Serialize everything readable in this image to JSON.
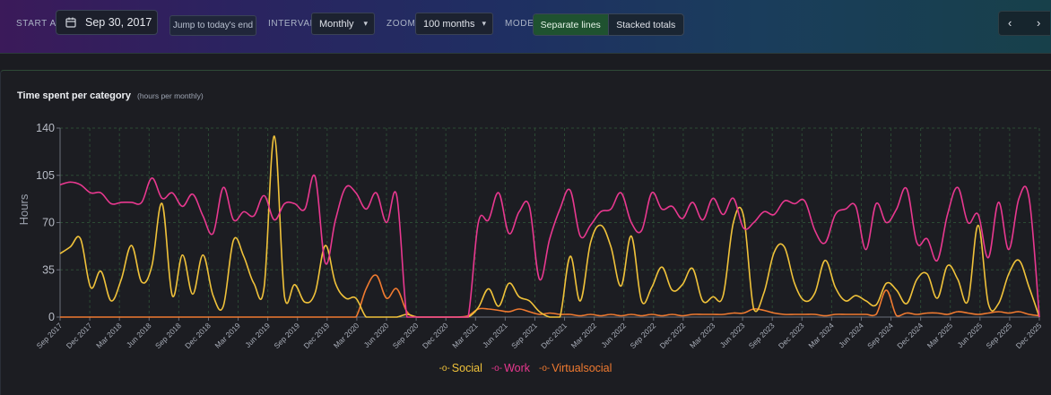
{
  "toolbar": {
    "start_at_label": "START AT",
    "start_date": "Sep 30, 2017",
    "jump_label": "Jump to today's end",
    "interval_label": "INTERVAL",
    "interval_value": "Monthly",
    "zoom_label": "ZOOM",
    "zoom_value": "100 months",
    "mode_label": "MODE",
    "mode_active": "Separate lines",
    "mode_inactive": "Stacked totals",
    "prev_icon": "‹",
    "next_icon": "›"
  },
  "card": {
    "title": "Time spent per category",
    "subtitle": "(hours per monthly)"
  },
  "chart_data": {
    "type": "line",
    "title": "Time spent per category",
    "ylabel": "Hours",
    "ylim": [
      0,
      140
    ],
    "yticks": [
      0,
      35,
      70,
      105,
      140
    ],
    "xtick_labels": [
      "Sep 2017",
      "Dec 2017",
      "Mar 2018",
      "Jun 2018",
      "Sep 2018",
      "Dec 2018",
      "Mar 2019",
      "Jun 2019",
      "Sep 2019",
      "Dec 2019",
      "Mar 2020",
      "Jun 2020",
      "Sep 2020",
      "Dec 2020",
      "Mar 2021",
      "Jun 2021",
      "Sep 2021",
      "Dec 2021",
      "Mar 2022",
      "Jun 2022",
      "Sep 2022",
      "Dec 2022",
      "Mar 2023",
      "Jun 2023",
      "Sep 2023",
      "Dec 2023",
      "Mar 2024",
      "Jun 2024",
      "Sep 2024",
      "Dec 2024",
      "Mar 2025",
      "Jun 2025",
      "Sep 2025",
      "Dec 2025"
    ],
    "grid": true,
    "legend_position": "bottom-center",
    "series": [
      {
        "name": "Social",
        "color": "#f0c23a",
        "values": [
          47,
          52,
          58,
          22,
          34,
          12,
          28,
          53,
          26,
          38,
          84,
          16,
          46,
          17,
          46,
          16,
          8,
          57,
          45,
          25,
          22,
          134,
          15,
          24,
          11,
          18,
          53,
          25,
          14,
          14,
          0,
          0,
          0,
          0,
          2,
          0,
          0,
          0,
          0,
          0,
          0,
          7,
          21,
          8,
          25,
          15,
          12,
          4,
          0,
          0,
          45,
          12,
          55,
          68,
          52,
          23,
          60,
          12,
          22,
          37,
          20,
          24,
          36,
          12,
          15,
          16,
          70,
          75,
          6,
          18,
          48,
          52,
          25,
          12,
          18,
          42,
          22,
          12,
          16,
          12,
          9,
          25,
          20,
          10,
          28,
          32,
          14,
          38,
          28,
          12,
          68,
          10,
          10,
          32,
          42,
          22,
          0
        ]
      },
      {
        "name": "Work",
        "color": "#e8388f",
        "values": [
          98,
          100,
          98,
          92,
          92,
          84,
          85,
          85,
          85,
          103,
          88,
          92,
          82,
          91,
          75,
          62,
          96,
          72,
          78,
          75,
          90,
          72,
          84,
          84,
          80,
          104,
          40,
          72,
          96,
          92,
          80,
          92,
          70,
          90,
          0,
          0,
          0,
          0,
          0,
          0,
          0,
          70,
          72,
          92,
          62,
          78,
          82,
          28,
          58,
          80,
          94,
          60,
          68,
          78,
          80,
          92,
          70,
          64,
          92,
          80,
          82,
          73,
          85,
          72,
          88,
          76,
          88,
          66,
          70,
          78,
          76,
          86,
          84,
          86,
          64,
          55,
          76,
          80,
          82,
          50,
          84,
          70,
          80,
          95,
          55,
          58,
          42,
          76,
          96,
          70,
          76,
          44,
          85,
          50,
          88,
          88,
          0
        ]
      },
      {
        "name": "Virtualsocial",
        "color": "#f07a30",
        "values": [
          0,
          0,
          0,
          0,
          0,
          0,
          0,
          0,
          0,
          0,
          0,
          0,
          0,
          0,
          0,
          0,
          0,
          0,
          0,
          0,
          0,
          0,
          0,
          0,
          0,
          0,
          0,
          0,
          0,
          0,
          21,
          31,
          14,
          21,
          4,
          0,
          0,
          0,
          0,
          0,
          1,
          6,
          6,
          5,
          4,
          6,
          4,
          2,
          3,
          2,
          2,
          1,
          2,
          1,
          2,
          1,
          2,
          1,
          2,
          1,
          2,
          1,
          2,
          2,
          2,
          2,
          3,
          3,
          6,
          5,
          3,
          2,
          2,
          2,
          2,
          1,
          2,
          2,
          2,
          2,
          2,
          20,
          1,
          3,
          2,
          3,
          3,
          2,
          4,
          3,
          2,
          3,
          4,
          3,
          4,
          2,
          1
        ]
      }
    ]
  }
}
